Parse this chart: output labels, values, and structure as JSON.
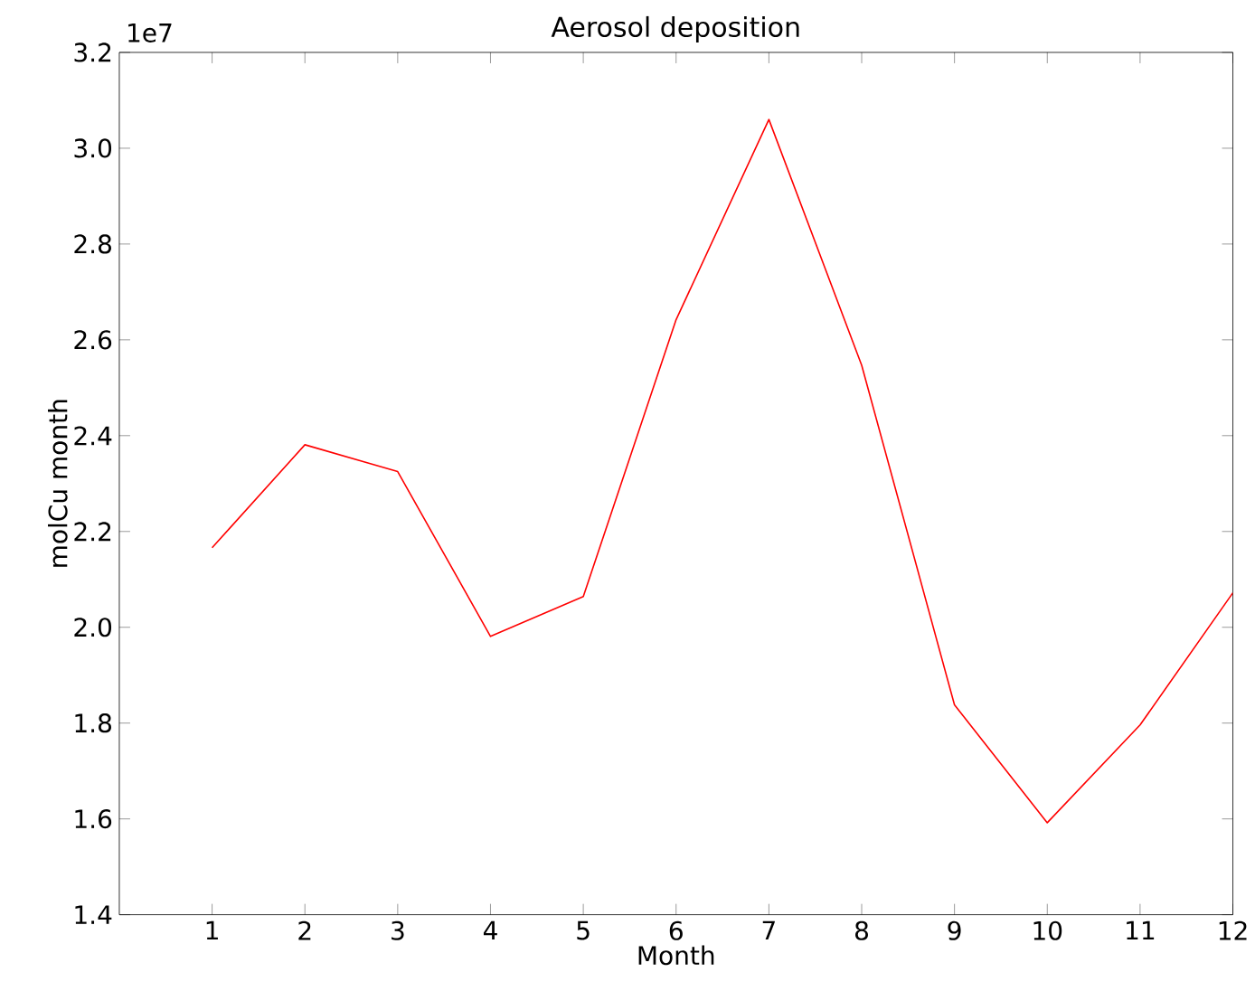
{
  "chart_data": {
    "type": "line",
    "title": "Aerosol deposition",
    "xlabel": "Month",
    "ylabel": "molCu month",
    "annotations": [
      "1e7"
    ],
    "x": [
      1,
      2,
      3,
      4,
      5,
      6,
      7,
      8,
      9,
      10,
      11,
      12
    ],
    "series": [
      {
        "color": "#ff0000",
        "values": [
          2.166,
          2.381,
          2.325,
          1.981,
          2.064,
          2.642,
          3.06,
          2.547,
          1.838,
          1.592,
          1.796,
          2.072
        ]
      }
    ],
    "xlim": [
      0,
      12
    ],
    "xticks": [
      1,
      2,
      3,
      4,
      5,
      6,
      7,
      8,
      9,
      10,
      11,
      12
    ],
    "ylim": [
      1.4,
      3.2
    ],
    "yticks": [
      {
        "value": 1.4,
        "label": "1.4"
      },
      {
        "value": 1.6,
        "label": "1.6"
      },
      {
        "value": 1.8,
        "label": "1.8"
      },
      {
        "value": 2.0,
        "label": "2.0"
      },
      {
        "value": 2.2,
        "label": "2.2"
      },
      {
        "value": 2.4,
        "label": "2.4"
      },
      {
        "value": 2.6,
        "label": "2.6"
      },
      {
        "value": 2.8,
        "label": "2.8"
      },
      {
        "value": 3.0,
        "label": "3.0"
      },
      {
        "value": 3.2,
        "label": "3.2"
      }
    ],
    "grid": false,
    "marker": "none",
    "line_style": "solid"
  }
}
